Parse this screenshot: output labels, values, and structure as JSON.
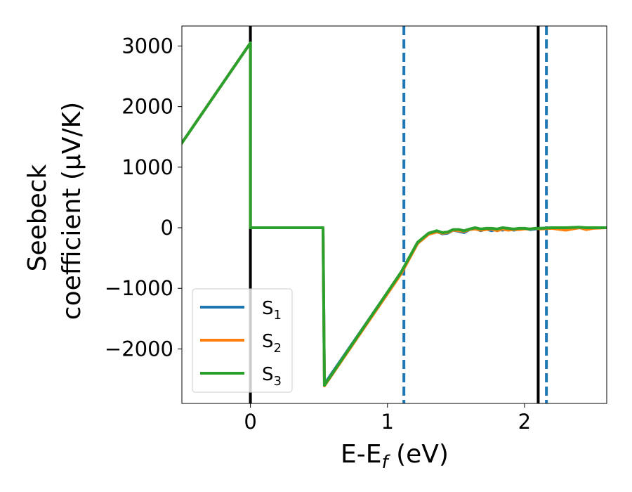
{
  "chart_data": {
    "type": "line",
    "xlabel": "E-E",
    "xlabel_sub": "f",
    "xlabel_unit": " (eV)",
    "ylabel_line1": "Seebeck",
    "ylabel_line2": "coefficient  (μV/K)",
    "xlim": [
      -0.5,
      2.6
    ],
    "ylim": [
      -2900,
      3330
    ],
    "x_ticks": [
      0,
      1,
      2
    ],
    "x_tick_labels": [
      "0",
      "1",
      "2"
    ],
    "y_ticks": [
      3000,
      2000,
      1000,
      0,
      -1000,
      -2000
    ],
    "y_tick_labels": [
      "3000",
      "2000",
      "1000",
      "0",
      "−1000",
      "−2000"
    ],
    "grid": false,
    "legend_position": "lower-left",
    "vertical_lines": [
      {
        "x": 0.0,
        "style": "solid",
        "color": "#000000"
      },
      {
        "x": 2.1,
        "style": "solid",
        "color": "#000000"
      },
      {
        "x": 1.12,
        "style": "dashed",
        "color": "#1f77b4"
      },
      {
        "x": 2.16,
        "style": "dashed",
        "color": "#1f77b4"
      }
    ],
    "series": [
      {
        "name": "S",
        "sub": "1",
        "color": "#1f77b4",
        "x": [
          -0.5,
          0.0,
          0.0,
          0.53,
          0.54,
          1.1,
          1.22,
          1.3,
          1.36,
          1.4,
          1.44,
          1.48,
          1.52,
          1.56,
          1.6,
          1.64,
          1.68,
          1.72,
          1.76,
          1.8,
          1.84,
          1.88,
          1.92,
          1.96,
          2.0,
          2.04,
          2.08,
          2.12,
          2.2,
          2.3,
          2.4,
          2.45,
          2.5,
          2.6
        ],
        "y": [
          1400,
          3050,
          0,
          0,
          -2580,
          -740,
          -250,
          -100,
          -60,
          -100,
          -90,
          -40,
          -60,
          -80,
          -30,
          -10,
          -50,
          -20,
          -50,
          -20,
          -40,
          -10,
          -40,
          -20,
          -10,
          -30,
          -20,
          -10,
          0,
          -10,
          0,
          -20,
          0,
          0
        ]
      },
      {
        "name": "S",
        "sub": "2",
        "color": "#ff7f0e",
        "x": [
          -0.5,
          0.0,
          0.0,
          0.53,
          0.54,
          1.1,
          1.22,
          1.3,
          1.36,
          1.4,
          1.44,
          1.48,
          1.52,
          1.56,
          1.6,
          1.64,
          1.68,
          1.72,
          1.76,
          1.8,
          1.84,
          1.88,
          1.92,
          1.96,
          2.0,
          2.04,
          2.08,
          2.12,
          2.2,
          2.3,
          2.4,
          2.45,
          2.5,
          2.6
        ],
        "y": [
          1400,
          3050,
          0,
          0,
          -2610,
          -760,
          -260,
          -110,
          -70,
          -90,
          -80,
          -40,
          -50,
          -60,
          -30,
          -20,
          -40,
          -30,
          -20,
          -50,
          -20,
          -40,
          -30,
          -30,
          -20,
          -20,
          -10,
          -20,
          -10,
          -40,
          0,
          -30,
          -10,
          0
        ]
      },
      {
        "name": "S",
        "sub": "3",
        "color": "#2ca02c",
        "x": [
          -0.5,
          0.0,
          0.0,
          0.53,
          0.54,
          1.1,
          1.22,
          1.3,
          1.36,
          1.4,
          1.44,
          1.48,
          1.52,
          1.56,
          1.6,
          1.64,
          1.68,
          1.72,
          1.76,
          1.8,
          1.84,
          1.88,
          1.92,
          1.96,
          2.0,
          2.04,
          2.08,
          2.12,
          2.2,
          2.3,
          2.4,
          2.45,
          2.5,
          2.6
        ],
        "y": [
          1400,
          3050,
          0,
          0,
          -2600,
          -730,
          -240,
          -90,
          -50,
          -80,
          -70,
          -30,
          -30,
          -50,
          -20,
          0,
          -20,
          -10,
          -10,
          -20,
          0,
          -10,
          -20,
          -10,
          -10,
          -20,
          -10,
          -10,
          0,
          0,
          10,
          0,
          0,
          0
        ]
      }
    ]
  }
}
